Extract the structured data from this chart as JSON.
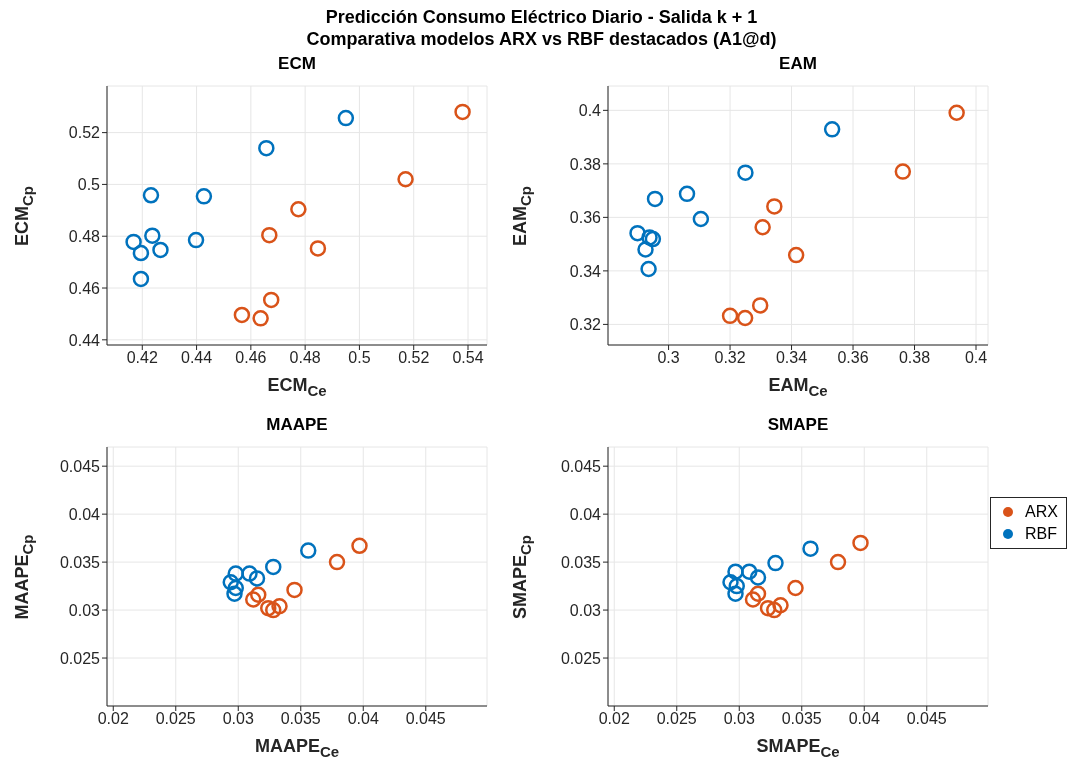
{
  "chart_data": [
    {
      "type": "scatter",
      "title": "ECM",
      "xlabel": "ECM$_{Ce}$",
      "ylabel": "ECM$_{Cp}$",
      "annotations": [
        "Predicción Consumo Eléctrico Diario - Salida k + 1",
        "Comparativa modelos ARX vs RBF destacados (A1@d)"
      ],
      "xlim": [
        0.407,
        0.547
      ],
      "ylim": [
        0.438,
        0.538
      ],
      "xticks": [
        0.42,
        0.44,
        0.46,
        0.48,
        0.5,
        0.52,
        0.54
      ],
      "yticks": [
        0.44,
        0.46,
        0.48,
        0.5,
        0.52
      ],
      "grid": true,
      "marker": "circle",
      "series": [
        {
          "color": "#d95319",
          "x": [
            0.538,
            0.517,
            0.4775,
            0.4668,
            0.4847,
            0.4675,
            0.4567,
            0.4636
          ],
          "values": [
            0.528,
            0.502,
            0.4904,
            0.4804,
            0.4753,
            0.4554,
            0.4496,
            0.4483
          ]
        },
        {
          "color": "#0072bd",
          "x": [
            0.495,
            0.4657,
            0.4232,
            0.4427,
            0.4237,
            0.4398,
            0.4168,
            0.4195,
            0.4267,
            0.4195
          ],
          "values": [
            0.5256,
            0.514,
            0.4958,
            0.4954,
            0.4802,
            0.4785,
            0.4778,
            0.4735,
            0.4747,
            0.4635
          ]
        }
      ]
    },
    {
      "type": "scatter",
      "title": "EAM",
      "xlabel": "EAM$_{Ce}$",
      "ylabel": "EAM$_{Cp}$",
      "xlim": [
        0.2803,
        0.4039
      ],
      "ylim": [
        0.3123,
        0.4091
      ],
      "xticks": [
        0.3,
        0.32,
        0.34,
        0.36,
        0.38,
        0.4
      ],
      "yticks": [
        0.32,
        0.34,
        0.36,
        0.38,
        0.4
      ],
      "grid": true,
      "marker": "circle",
      "legend": "right",
      "series": [
        {
          "name": "ARX",
          "color": "#d95319",
          "x": [
            0.3937,
            0.3762,
            0.3344,
            0.3306,
            0.3415,
            0.3298,
            0.32,
            0.3249
          ],
          "values": [
            0.3991,
            0.3771,
            0.3641,
            0.3563,
            0.3459,
            0.3271,
            0.3232,
            0.3224
          ]
        },
        {
          "name": "RBF",
          "color": "#0072bd",
          "x": [
            0.3532,
            0.325,
            0.306,
            0.2956,
            0.3105,
            0.2899,
            0.2938,
            0.2949,
            0.2925,
            0.2935
          ],
          "values": [
            0.3929,
            0.3767,
            0.3688,
            0.3669,
            0.3594,
            0.3541,
            0.3525,
            0.3519,
            0.348,
            0.3407
          ]
        }
      ]
    },
    {
      "type": "scatter",
      "title": "MAAPE",
      "xlabel": "MAAPE$_{Ce}$",
      "ylabel": "MAAPE$_{Cp}$",
      "xlim": [
        0.0195,
        0.0499
      ],
      "ylim": [
        0.02,
        0.047
      ],
      "xticks": [
        0.02,
        0.025,
        0.03,
        0.035,
        0.04,
        0.045
      ],
      "yticks": [
        0.025,
        0.03,
        0.035,
        0.04,
        0.045
      ],
      "grid": true,
      "marker": "circle",
      "series": [
        {
          "color": "#d95319",
          "x": [
            0.0397,
            0.0379,
            0.0345,
            0.0316,
            0.0312,
            0.0324,
            0.0328,
            0.0333
          ],
          "values": [
            0.0367,
            0.035,
            0.0321,
            0.0316,
            0.0311,
            0.0302,
            0.03,
            0.0304
          ]
        },
        {
          "color": "#0072bd",
          "x": [
            0.0356,
            0.0328,
            0.0309,
            0.0315,
            0.0298,
            0.0294,
            0.0298,
            0.0297
          ],
          "values": [
            0.0362,
            0.0345,
            0.0338,
            0.0333,
            0.0338,
            0.0329,
            0.0323,
            0.0317
          ]
        }
      ]
    },
    {
      "type": "scatter",
      "title": "SMAPE",
      "xlabel": "SMAPE$_{Ce}$",
      "ylabel": "SMAPE$_{Cp}$",
      "xlim": [
        0.0195,
        0.0499
      ],
      "ylim": [
        0.02,
        0.047
      ],
      "xticks": [
        0.02,
        0.025,
        0.03,
        0.035,
        0.04,
        0.045
      ],
      "yticks": [
        0.025,
        0.03,
        0.035,
        0.04,
        0.045
      ],
      "grid": true,
      "marker": "circle",
      "series": [
        {
          "color": "#d95319",
          "x": [
            0.0397,
            0.0379,
            0.0345,
            0.0315,
            0.0311,
            0.0323,
            0.0328,
            0.0333
          ],
          "values": [
            0.037,
            0.035,
            0.0323,
            0.0317,
            0.0311,
            0.0302,
            0.03,
            0.0305
          ]
        },
        {
          "color": "#0072bd",
          "x": [
            0.0357,
            0.0329,
            0.0308,
            0.0315,
            0.0297,
            0.0293,
            0.0298,
            0.0297
          ],
          "values": [
            0.0364,
            0.0349,
            0.034,
            0.0334,
            0.034,
            0.0329,
            0.0325,
            0.0317
          ]
        }
      ]
    }
  ]
}
